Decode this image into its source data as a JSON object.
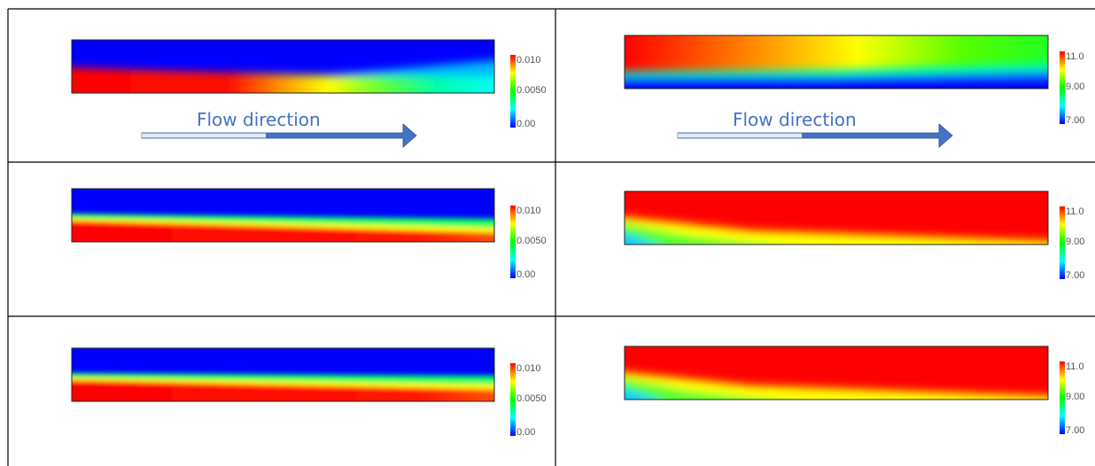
{
  "rows": [
    {
      "left": {
        "colorbar_labels": [
          "0.010",
          "0.0050",
          "0.00"
        ],
        "annotation": "Flow direction"
      },
      "right": {
        "colorbar_labels": [
          "11.0",
          "9.00",
          "7.00"
        ],
        "annotation": "Flow direction"
      }
    },
    {
      "left": {
        "colorbar_labels": [
          "0.010",
          "0.0050",
          "0.00"
        ]
      },
      "right": {
        "colorbar_labels": [
          "11.0",
          "9.00",
          "7.00"
        ]
      }
    },
    {
      "left": {
        "colorbar_labels": [
          "0.010",
          "0.0050",
          "0.00"
        ]
      },
      "right": {
        "colorbar_labels": [
          "11.0",
          "9.00",
          "7.00"
        ]
      }
    }
  ]
}
